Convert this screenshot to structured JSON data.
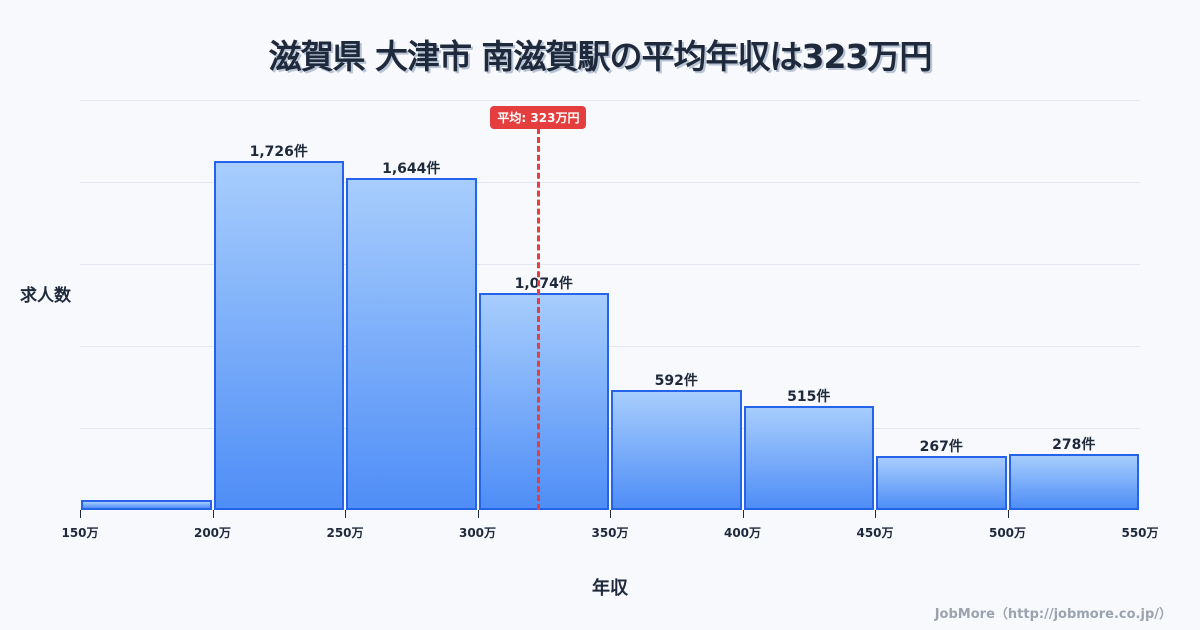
{
  "title": "滋賀県 大津市 南滋賀駅の平均年収は323万円",
  "y_axis_label": "求人数",
  "x_axis_label": "年収",
  "mean": {
    "label": "平均: 323万円",
    "value": 323,
    "color": "#e53e3e"
  },
  "watermark": "JobMore（http://jobmore.co.jp/）",
  "colors": {
    "bar_top": "#a7cdfc",
    "bar_bottom": "#4f8ef7",
    "bar_border": "#2563eb",
    "background": "#f7f9fc"
  },
  "x_ticks": [
    "150万",
    "200万",
    "250万",
    "300万",
    "350万",
    "400万",
    "450万",
    "500万",
    "550万"
  ],
  "bars": [
    {
      "range": "150万-200万",
      "value": 50,
      "label": ""
    },
    {
      "range": "200万-250万",
      "value": 1726,
      "label": "1,726件"
    },
    {
      "range": "250万-300万",
      "value": 1644,
      "label": "1,644件"
    },
    {
      "range": "300万-350万",
      "value": 1074,
      "label": "1,074件"
    },
    {
      "range": "350万-400万",
      "value": 592,
      "label": "592件"
    },
    {
      "range": "400万-450万",
      "value": 515,
      "label": "515件"
    },
    {
      "range": "450万-500万",
      "value": 267,
      "label": "267件"
    },
    {
      "range": "500万-550万",
      "value": 278,
      "label": "278件"
    }
  ],
  "chart_data": {
    "type": "bar",
    "title": "滋賀県 大津市 南滋賀駅の平均年収は323万円",
    "xlabel": "年収",
    "ylabel": "求人数",
    "categories": [
      "150-200万",
      "200-250万",
      "250-300万",
      "300-350万",
      "350-400万",
      "400-450万",
      "450-500万",
      "500-550万"
    ],
    "values": [
      50,
      1726,
      1644,
      1074,
      592,
      515,
      267,
      278
    ],
    "x_ticks": [
      "150万",
      "200万",
      "250万",
      "300万",
      "350万",
      "400万",
      "450万",
      "500万",
      "550万"
    ],
    "annotations": [
      {
        "type": "vline",
        "x": 323,
        "label": "平均: 323万円"
      }
    ],
    "ylim": [
      0,
      2028
    ],
    "grid": true,
    "legend": "none"
  }
}
